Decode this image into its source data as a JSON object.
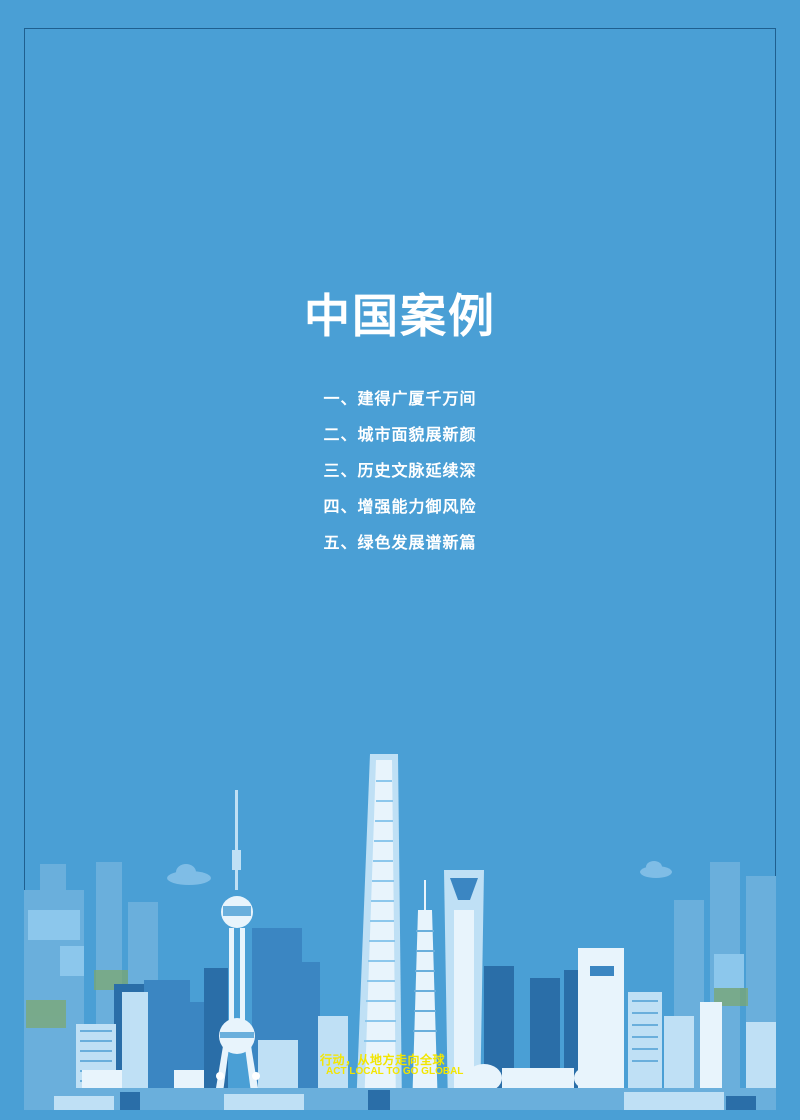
{
  "title": "中国案例",
  "toc": [
    "一、建得广厦千万间",
    "二、城市面貌展新颜",
    "三、历史文脉延续深",
    "四、增强能力御风险",
    "五、绿色发展谱新篇"
  ],
  "slogan": {
    "cn": "行动，从地方走向全球",
    "en": "ACT LOCAL TO GO GLOBAL"
  },
  "colors": {
    "background": "#4a9fd5",
    "text": "#ffffff",
    "slogan": "#f3e500"
  }
}
